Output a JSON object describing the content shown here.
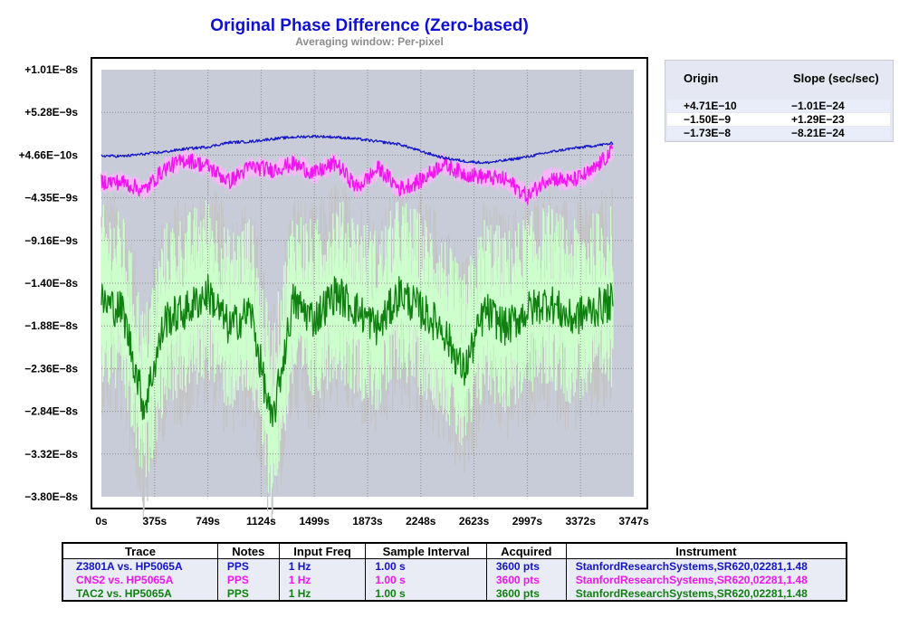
{
  "chart_data": {
    "type": "line",
    "title": "Original Phase Difference (Zero-based)",
    "subtitle": "Averaging window: Per-pixel",
    "xlabel": "",
    "ylabel": "",
    "x_tick_labels": [
      "0s",
      "375s",
      "749s",
      "1124s",
      "1499s",
      "1873s",
      "2248s",
      "2623s",
      "2997s",
      "3372s",
      "3747s"
    ],
    "y_tick_labels": [
      "+1.01E−8s",
      "+5.28E−9s",
      "+4.66E−10s",
      "−4.35E−9s",
      "−9.16E−9s",
      "−1.40E−8s",
      "−1.88E−8s",
      "−2.36E−8s",
      "−2.84E−8s",
      "−3.32E−8s",
      "−3.80E−8s"
    ],
    "xlim": [
      0,
      3747
    ],
    "ylim": [
      -3.8e-08,
      1.01e-08
    ],
    "grid": true,
    "series": [
      {
        "name": "Z3801A vs. HP5065A",
        "color": "#1414c8",
        "x": [
          0,
          150,
          300,
          450,
          600,
          750,
          900,
          1050,
          1200,
          1350,
          1500,
          1650,
          1800,
          1950,
          2100,
          2250,
          2400,
          2550,
          2700,
          2850,
          3000,
          3150,
          3300,
          3450,
          3600
        ],
        "values": [
          4e-10,
          3.5e-10,
          6e-10,
          8.5e-10,
          1.2e-09,
          1.4e-09,
          1.9e-09,
          2e-09,
          2.3e-09,
          2.5e-09,
          2.6e-09,
          2.5e-09,
          2.3e-09,
          2e-09,
          1.7e-09,
          9e-10,
          2e-10,
          -2e-10,
          -4e-10,
          -1e-10,
          3e-10,
          8e-10,
          1.2e-09,
          1.5e-09,
          1.8e-09
        ]
      },
      {
        "name": "CNS2 vs. HP5065A",
        "color": "#f014f0",
        "x": [
          0,
          150,
          300,
          450,
          600,
          750,
          900,
          1050,
          1200,
          1350,
          1500,
          1650,
          1800,
          1950,
          2100,
          2250,
          2400,
          2550,
          2700,
          2850,
          3000,
          3150,
          3300,
          3450,
          3600
        ],
        "values": [
          -2.5e-09,
          -2.6e-09,
          -3.5e-09,
          -1e-09,
          0.0,
          -8e-10,
          -2.5e-09,
          -8e-10,
          -1.2e-09,
          -5e-10,
          -1.6e-09,
          -4e-10,
          -3.2e-09,
          -1e-09,
          -3.3e-09,
          -2.4e-09,
          -5e-10,
          -1.6e-09,
          -2e-09,
          -2.3e-09,
          -4.2e-09,
          -2e-09,
          -2.5e-09,
          -1.4e-09,
          1e-09
        ]
      },
      {
        "name": "TAC2 vs. HP5065A",
        "color": "#108010",
        "x": [
          0,
          150,
          300,
          450,
          600,
          750,
          900,
          1050,
          1200,
          1350,
          1500,
          1650,
          1800,
          1950,
          2100,
          2250,
          2400,
          2550,
          2700,
          2850,
          3000,
          3150,
          3300,
          3450,
          3600
        ],
        "values": [
          -1.6e-08,
          -1.7e-08,
          -2.8e-08,
          -1.8e-08,
          -1.7e-08,
          -1.5e-08,
          -1.9e-08,
          -1.7e-08,
          -3e-08,
          -1.6e-08,
          -1.8e-08,
          -1.5e-08,
          -1.7e-08,
          -1.9e-08,
          -1.5e-08,
          -1.7e-08,
          -1.9e-08,
          -2.4e-08,
          -1.7e-08,
          -1.9e-08,
          -1.7e-08,
          -1.6e-08,
          -1.8e-08,
          -1.7e-08,
          -1.6e-08
        ]
      }
    ]
  },
  "slope_panel": {
    "header_origin": "Origin",
    "header_slope": "Slope (sec/sec)",
    "rows": [
      {
        "origin": "+4.71E−10",
        "slope": "−1.01E−24",
        "color": "#1414c8"
      },
      {
        "origin": "−1.50E−9",
        "slope": "+1.29E−23",
        "color": "#f014f0"
      },
      {
        "origin": "−1.73E−8",
        "slope": "−8.21E−24",
        "color": "#108010"
      }
    ]
  },
  "info_table": {
    "headers": [
      "Trace",
      "Notes",
      "Input Freq",
      "Sample Interval",
      "Acquired",
      "Instrument"
    ],
    "rows": [
      {
        "trace": "Z3801A vs. HP5065A",
        "notes": "PPS",
        "freq": "1 Hz",
        "interval": "1.00 s",
        "acquired": "3600 pts",
        "instrument": "StanfordResearchSystems,SR620,02281,1.48",
        "color": "#1414c8"
      },
      {
        "trace": "CNS2 vs. HP5065A",
        "notes": "PPS",
        "freq": "1 Hz",
        "interval": "1.00 s",
        "acquired": "3600 pts",
        "instrument": "StanfordResearchSystems,SR620,02281,1.48",
        "color": "#f014f0"
      },
      {
        "trace": "TAC2 vs. HP5065A",
        "notes": "PPS",
        "freq": "1 Hz",
        "interval": "1.00 s",
        "acquired": "3600 pts",
        "instrument": "StanfordResearchSystems,SR620,02281,1.48",
        "color": "#108010"
      }
    ]
  },
  "colors": {
    "plot_background": "#c8ccd8",
    "grid": "#8c8c8c",
    "envelope_gray": "#c4c4c4",
    "envelope_green": "#ccffcc",
    "envelope_pink": "#ffb4ff"
  }
}
